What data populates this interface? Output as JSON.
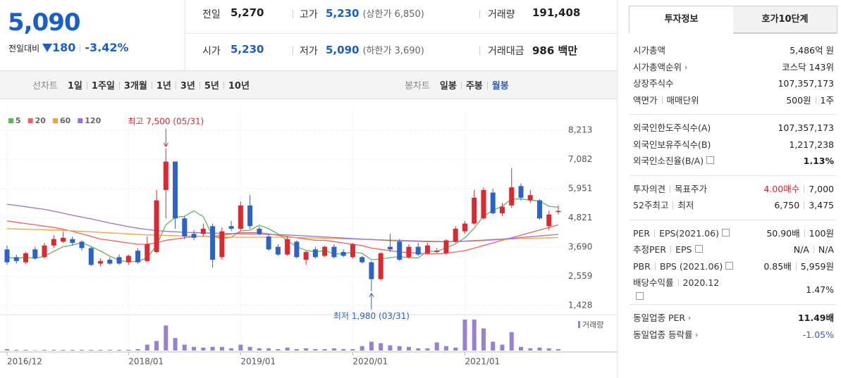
{
  "header": {
    "price": "5,090",
    "change_label": "전일대비",
    "change": "180",
    "change_pct": "-3.42%"
  },
  "quote": {
    "rows": [
      [
        {
          "label": "전일",
          "value": "5,270",
          "color": "#222"
        },
        {
          "label": "고가",
          "value": "5,230",
          "note": "(상한가 6,850)",
          "color": "#1a5ec9"
        },
        {
          "label": "거래량",
          "value": "191,408",
          "color": "#222"
        }
      ],
      [
        {
          "label": "시가",
          "value": "5,230",
          "color": "#1a5ec9"
        },
        {
          "label": "저가",
          "value": "5,090",
          "note": "(하한가 3,690)",
          "color": "#1a5ec9"
        },
        {
          "label": "거래대금",
          "value": "986 백만",
          "color": "#222"
        }
      ]
    ]
  },
  "tabs": {
    "line_label": "선차트",
    "line_items": [
      "1일",
      "1주일",
      "3개월",
      "1년",
      "3년",
      "5년",
      "10년"
    ],
    "candle_label": "봉차트",
    "candle_items": [
      "일봉",
      "주봉",
      "월봉"
    ],
    "candle_selected": 2
  },
  "chart_data": {
    "type": "candlestick",
    "categories": [
      "2016/12",
      null,
      null,
      null,
      null,
      null,
      null,
      null,
      null,
      null,
      null,
      null,
      null,
      "2018/01",
      null,
      null,
      null,
      null,
      null,
      null,
      null,
      null,
      null,
      null,
      null,
      "2019/01",
      null,
      null,
      null,
      null,
      null,
      null,
      null,
      null,
      null,
      null,
      null,
      "2020/01",
      null,
      null,
      null,
      null,
      null,
      null,
      null,
      null,
      null,
      null,
      null,
      "2021/01",
      null,
      null,
      null,
      null,
      null,
      null,
      null,
      null,
      null,
      null
    ],
    "candles": [
      [
        3600,
        3750,
        3000,
        3100
      ],
      [
        3300,
        3400,
        3050,
        3150
      ],
      [
        3100,
        3500,
        3050,
        3450
      ],
      [
        3600,
        3700,
        3200,
        3250
      ],
      [
        3300,
        3850,
        3250,
        3750
      ],
      [
        3750,
        4150,
        3650,
        4000
      ],
      [
        3900,
        4300,
        3850,
        4050
      ],
      [
        4000,
        4100,
        3750,
        3850
      ],
      [
        3900,
        3950,
        3550,
        3650
      ],
      [
        3650,
        3700,
        2950,
        3000
      ],
      [
        3050,
        3250,
        2950,
        3150
      ],
      [
        3200,
        3300,
        3000,
        3050
      ],
      [
        3300,
        3400,
        3000,
        3050
      ],
      [
        3100,
        3400,
        3000,
        3350
      ],
      [
        3550,
        3650,
        3050,
        3100
      ],
      [
        3150,
        4100,
        3100,
        3800
      ],
      [
        3500,
        5900,
        3450,
        5500
      ],
      [
        5900,
        7500,
        4800,
        7000
      ],
      [
        7000,
        7000,
        4400,
        4800
      ],
      [
        4800,
        4900,
        4000,
        4100
      ],
      [
        4200,
        4350,
        3950,
        4050
      ],
      [
        4200,
        4600,
        4100,
        4400
      ],
      [
        4500,
        4600,
        2900,
        3200
      ],
      [
        3300,
        4450,
        3200,
        4300
      ],
      [
        4500,
        4700,
        4300,
        4400
      ],
      [
        4400,
        5450,
        4300,
        5300
      ],
      [
        5300,
        5700,
        4400,
        4500
      ],
      [
        4400,
        4500,
        4150,
        4200
      ],
      [
        4100,
        4200,
        3550,
        3600
      ],
      [
        3700,
        3800,
        3350,
        3400
      ],
      [
        3400,
        4100,
        3350,
        4000
      ],
      [
        3900,
        3950,
        3250,
        3300
      ],
      [
        3200,
        3550,
        3000,
        3500
      ],
      [
        3600,
        3700,
        3250,
        3300
      ],
      [
        3350,
        3750,
        3300,
        3700
      ],
      [
        3700,
        3800,
        3250,
        3300
      ],
      [
        3500,
        3600,
        3300,
        3350
      ],
      [
        3300,
        3850,
        3250,
        3800
      ],
      [
        3300,
        3350,
        3050,
        3100
      ],
      [
        3100,
        3150,
        1980,
        2450
      ],
      [
        2450,
        3500,
        2400,
        3450
      ],
      [
        3700,
        4200,
        3500,
        3600
      ],
      [
        3900,
        4000,
        3150,
        3200
      ],
      [
        3300,
        3800,
        3250,
        3700
      ],
      [
        3700,
        3850,
        3350,
        3400
      ],
      [
        3450,
        3850,
        3400,
        3750
      ],
      [
        3500,
        3650,
        3450,
        3550
      ],
      [
        3450,
        4000,
        3400,
        3950
      ],
      [
        3900,
        4500,
        3850,
        4400
      ],
      [
        4300,
        4700,
        4200,
        4600
      ],
      [
        4600,
        5900,
        4550,
        5600
      ],
      [
        4800,
        6000,
        4750,
        5900
      ],
      [
        5800,
        5950,
        4950,
        5000
      ],
      [
        5000,
        5400,
        4900,
        5250
      ],
      [
        5300,
        6750,
        5200,
        6000
      ],
      [
        6050,
        6150,
        5500,
        5600
      ],
      [
        5500,
        5900,
        5400,
        5700
      ],
      [
        5500,
        5550,
        4750,
        4800
      ],
      [
        4500,
        5100,
        4350,
        4950
      ],
      [
        5050,
        5300,
        4950,
        5090
      ]
    ],
    "up_color": "#e0262e",
    "down_color": "#2d62c9",
    "series": [
      {
        "name": "5",
        "color": "#5cb85c",
        "values": [
          3300,
          3250,
          3300,
          3250,
          3340,
          3520,
          3700,
          3770,
          3860,
          3710,
          3540,
          3340,
          3170,
          3120,
          3140,
          3270,
          3760,
          4550,
          4840,
          4880,
          5090,
          4870,
          4110,
          4010,
          4070,
          4320,
          4340,
          4540,
          4400,
          4200,
          3940,
          3700,
          3560,
          3500,
          3560,
          3420,
          3430,
          3490,
          3450,
          3200,
          3230,
          3280,
          3320,
          3280,
          3270,
          3530,
          3520,
          3670,
          3810,
          4050,
          4420,
          4890,
          5100,
          5270,
          5550,
          5550,
          5510,
          5470,
          5270,
          5230
        ]
      },
      {
        "name": "20",
        "color": "#f0605d",
        "values": [
          4700,
          4650,
          4600,
          4550,
          4500,
          4450,
          4380,
          4300,
          4200,
          4100,
          4000,
          3950,
          3900,
          3850,
          3800,
          3800,
          3850,
          3950,
          4000,
          4050,
          4100,
          4100,
          4100,
          4150,
          4200,
          4250,
          4250,
          4250,
          4200,
          4150,
          4100,
          4050,
          4000,
          3950,
          3950,
          3900,
          3850,
          3800,
          3750,
          3650,
          3600,
          3550,
          3500,
          3480,
          3450,
          3430,
          3430,
          3450,
          3500,
          3550,
          3650,
          3750,
          3850,
          3950,
          4050,
          4150,
          4250,
          4350,
          4450,
          4550
        ]
      },
      {
        "name": "60",
        "color": "#f5a03a",
        "values": [
          4400,
          4390,
          4380,
          4370,
          4360,
          4350,
          4340,
          4320,
          4300,
          4280,
          4260,
          4240,
          4220,
          4200,
          4180,
          4160,
          4150,
          4140,
          4130,
          4120,
          4110,
          4100,
          4090,
          4080,
          4070,
          4070,
          4070,
          4070,
          4070,
          4070,
          4070,
          4060,
          4050,
          4040,
          4030,
          4020,
          4010,
          4000,
          3990,
          3980,
          3970,
          3960,
          3950,
          3940,
          3930,
          3920,
          3910,
          3900,
          3900,
          3910,
          3920,
          3940,
          3960,
          3980,
          4000,
          4020,
          4030,
          4040,
          4050,
          4060
        ]
      },
      {
        "name": "120",
        "color": "#9b6fd3",
        "values": [
          5350,
          5300,
          5250,
          5200,
          5150,
          5080,
          5000,
          4920,
          4850,
          4780,
          4700,
          4620,
          4550,
          4480,
          4420,
          4370,
          4330,
          4300,
          4280,
          4260,
          4250,
          4240,
          4230,
          4220,
          4210,
          4200,
          4200,
          4190,
          4180,
          4170,
          4160,
          4140,
          4120,
          4100,
          4080,
          4060,
          4040,
          4020,
          4000,
          3980,
          3960,
          3940,
          3930,
          3920,
          3910,
          3900,
          3900,
          3900,
          3910,
          3920,
          3940,
          3960,
          3980,
          4000,
          4030,
          4060,
          4090,
          4120,
          4150,
          4180
        ]
      }
    ],
    "volume": {
      "name": "거래량",
      "color": "#9a80d0",
      "values": [
        2000000,
        1000000,
        1000000,
        500000,
        1000000,
        1000000,
        1000000,
        1000000,
        1000000,
        1000000,
        1000000,
        1000000,
        1000000,
        1000000,
        2000000,
        8000000,
        13000000,
        34000000,
        17000000,
        8000000,
        5000000,
        4000000,
        5000000,
        5000000,
        3000000,
        8000000,
        5000000,
        3000000,
        3000000,
        2000000,
        4000000,
        2000000,
        3000000,
        2000000,
        2000000,
        3000000,
        2000000,
        2000000,
        6000000,
        12000000,
        10000000,
        7000000,
        6000000,
        5000000,
        3000000,
        3000000,
        11000000,
        6000000,
        4000000,
        42000000,
        42000000,
        30000000,
        12000000,
        8000000,
        25000000,
        5000000,
        3000000,
        4000000,
        3000000,
        2000000
      ]
    },
    "ylim": [
      1428,
      8213
    ],
    "yticks": [
      {
        "value": 8213,
        "label": "8,213"
      },
      {
        "value": 7082,
        "label": "7,082"
      },
      {
        "value": 5951,
        "label": "5,951"
      },
      {
        "value": 4821,
        "label": "4,821"
      },
      {
        "value": 3690,
        "label": "3,690"
      },
      {
        "value": 2559,
        "label": "2,559"
      },
      {
        "value": 1428,
        "label": "1,428"
      }
    ],
    "grid": true,
    "annotations": {
      "high": "최고 7,500 (05/31)",
      "low": "최저 1,980 (03/31)"
    }
  },
  "right_panel": {
    "tabs": [
      "투자정보",
      "호가10단계"
    ],
    "sections": [
      [
        {
          "label": [
            "시가총액"
          ],
          "value": [
            "5,486억 원"
          ]
        },
        {
          "label": [
            "시가총액순위"
          ],
          "more": true,
          "value": [
            "코스닥 143위"
          ]
        },
        {
          "label": [
            "상장주식수"
          ],
          "value": [
            "107,357,173"
          ]
        },
        {
          "label": [
            "액면가",
            "매매단위"
          ],
          "value": [
            "500원",
            "1주"
          ]
        }
      ],
      [
        {
          "label": [
            "외국인한도주식수(A)"
          ],
          "value": [
            "107,357,173"
          ]
        },
        {
          "label": [
            "외국인보유주식수(B)"
          ],
          "value": [
            "1,217,238"
          ]
        },
        {
          "label": [
            "외국인소진율(B/A)"
          ],
          "help": true,
          "value": [
            "1.13%"
          ],
          "bold": true
        }
      ],
      [
        {
          "label": [
            "투자의견",
            "목표주가"
          ],
          "value": [
            "4.00매수",
            "7,000"
          ],
          "accent": "#e0262e"
        },
        {
          "label": [
            "52주최고",
            "최저"
          ],
          "value": [
            "6,750",
            "3,475"
          ]
        }
      ],
      [
        {
          "label": [
            "PER",
            "EPS(2021.06)"
          ],
          "help": true,
          "value": [
            "50.90배",
            "100원"
          ]
        },
        {
          "label": [
            "추정PER",
            "EPS"
          ],
          "help": true,
          "value": [
            "N/A",
            "N/A"
          ]
        },
        {
          "label": [
            "PBR",
            "BPS (2021.06)"
          ],
          "help": true,
          "value": [
            "0.85배",
            "5,959원"
          ]
        },
        {
          "label": [
            "배당수익률",
            "2020.12"
          ],
          "help": true,
          "tall": true,
          "value": [
            "1.47%"
          ]
        }
      ],
      [
        {
          "label": [
            "동일업종 PER"
          ],
          "more": true,
          "value": [
            "11.49배"
          ],
          "bold": true
        },
        {
          "label": [
            "동일업종 등락률"
          ],
          "more": true,
          "value": [
            "-1.05%"
          ],
          "accent": "#2d62c9"
        }
      ]
    ]
  }
}
